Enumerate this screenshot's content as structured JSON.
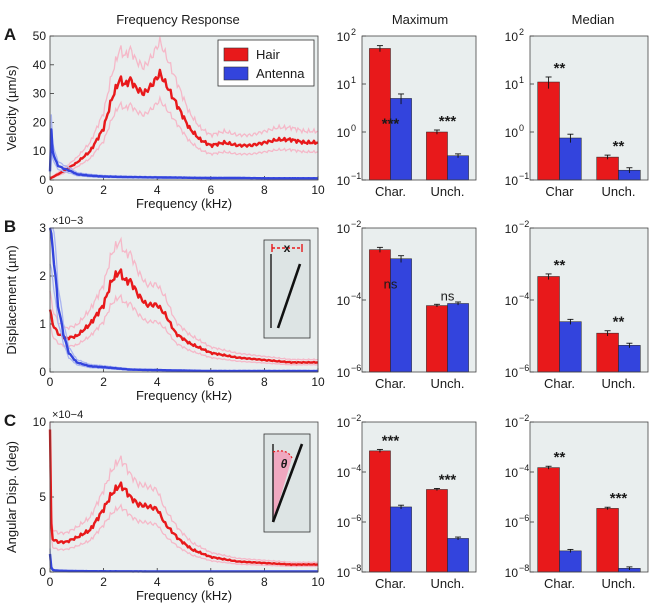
{
  "colors": {
    "hair": "#e8191b",
    "antenna": "#3344dd",
    "hair_band": "#f5b8c8",
    "antenna_band": "#a9b4f0",
    "panel_bg": "#e9eeee",
    "inset_bg": "#dde4e4",
    "inset_pink": "#f0a8c0"
  },
  "headers": {
    "freq": "Frequency Response",
    "max": "Maximum",
    "median": "Median"
  },
  "legend": {
    "hair": "Hair",
    "antenna": "Antenna"
  },
  "rows": [
    {
      "letter": "A",
      "ylabel": "Velocity (µm/s)",
      "xlabel": "Frequency (kHz)",
      "exponent": "",
      "yticks": [
        "0",
        "10",
        "20",
        "30",
        "40",
        "50"
      ],
      "xticks": [
        "0",
        "2",
        "4",
        "6",
        "8",
        "10"
      ],
      "inset": "",
      "bar_yticks": [
        {
          "base": "10",
          "exp": "2"
        },
        {
          "base": "10",
          "exp": "1"
        },
        {
          "base": "10",
          "exp": "0"
        },
        {
          "base": "10",
          "exp": "-1"
        }
      ],
      "max_categories": [
        "Char.",
        "Unch."
      ],
      "median_categories": [
        "Char",
        "Unch."
      ],
      "max_stars": [
        "***",
        "***"
      ],
      "median_stars": [
        "**",
        "**"
      ]
    },
    {
      "letter": "B",
      "ylabel": "Displacement (µm)",
      "xlabel": "Frequency (kHz)",
      "exponent": "×10-3",
      "yticks": [
        "0",
        "1",
        "2",
        "3"
      ],
      "xticks": [
        "0",
        "2",
        "4",
        "6",
        "8",
        "10"
      ],
      "inset": "x",
      "bar_yticks": [
        {
          "base": "10",
          "exp": "-2"
        },
        {
          "base": "10",
          "exp": "-4"
        },
        {
          "base": "10",
          "exp": "-6"
        }
      ],
      "max_categories": [
        "Char.",
        "Unch."
      ],
      "median_categories": [
        "Char.",
        "Unch."
      ],
      "max_stars": [
        "ns",
        "ns"
      ],
      "median_stars": [
        "**",
        "**"
      ]
    },
    {
      "letter": "C",
      "ylabel": "Angular Disp. (deg)",
      "xlabel": "Frequency (kHz)",
      "exponent": "×10-4",
      "yticks": [
        "0",
        "5",
        "10"
      ],
      "xticks": [
        "0",
        "2",
        "4",
        "6",
        "8",
        "10"
      ],
      "inset": "θ",
      "bar_yticks": [
        {
          "base": "10",
          "exp": "-2"
        },
        {
          "base": "10",
          "exp": "-4"
        },
        {
          "base": "10",
          "exp": "-6"
        },
        {
          "base": "10",
          "exp": "-8"
        }
      ],
      "max_categories": [
        "Char.",
        "Unch."
      ],
      "median_categories": [
        "Char.",
        "Unch."
      ],
      "max_stars": [
        "***",
        "***"
      ],
      "median_stars": [
        "**",
        "***"
      ]
    }
  ],
  "chart_data": [
    {
      "type": "line",
      "panel": "A",
      "title": "Frequency Response",
      "xlabel": "Frequency (kHz)",
      "ylabel": "Velocity (µm/s)",
      "xlim": [
        0,
        10
      ],
      "ylim": [
        0,
        50
      ],
      "legend": "top-right",
      "series": [
        {
          "name": "Hair",
          "x": [
            0,
            0.5,
            1,
            1.5,
            2,
            2.3,
            2.6,
            2.8,
            3.0,
            3.2,
            3.5,
            3.8,
            4.1,
            4.4,
            4.8,
            5.2,
            5.6,
            6.0,
            6.5,
            7,
            7.5,
            8,
            8.5,
            9,
            9.5,
            10
          ],
          "values": [
            0.5,
            3,
            6,
            10,
            18,
            28,
            35,
            33,
            35,
            32,
            30,
            33,
            37,
            32,
            25,
            18,
            14,
            12,
            13,
            12,
            12,
            13,
            14,
            14,
            13,
            13
          ]
        },
        {
          "name": "Antenna",
          "x": [
            0,
            0.05,
            0.1,
            0.2,
            0.3,
            0.5,
            0.8,
            1,
            1.5,
            2,
            3,
            4,
            5,
            6,
            7,
            8,
            9,
            10
          ],
          "values": [
            3,
            17,
            10,
            7,
            5,
            4,
            3,
            2,
            1.5,
            1.2,
            1,
            0.9,
            0.8,
            0.7,
            0.7,
            0.6,
            0.6,
            0.6
          ]
        }
      ]
    },
    {
      "type": "bar",
      "panel": "A",
      "title": "Maximum",
      "yscale": "log",
      "ylim": [
        0.1,
        100
      ],
      "categories": [
        "Char.",
        "Unch."
      ],
      "series": [
        {
          "name": "Hair",
          "values": [
            55,
            1.0
          ],
          "err": [
            8,
            0.1
          ]
        },
        {
          "name": "Antenna",
          "values": [
            5,
            0.32
          ],
          "err": [
            1.2,
            0.03
          ]
        }
      ]
    },
    {
      "type": "bar",
      "panel": "A",
      "title": "Median",
      "yscale": "log",
      "ylim": [
        0.1,
        100
      ],
      "categories": [
        "Char",
        "Unch."
      ],
      "series": [
        {
          "name": "Hair",
          "values": [
            11,
            0.3
          ],
          "err": [
            3,
            0.03
          ]
        },
        {
          "name": "Antenna",
          "values": [
            0.75,
            0.16
          ],
          "err": [
            0.15,
            0.02
          ]
        }
      ]
    },
    {
      "type": "line",
      "panel": "B",
      "xlabel": "Frequency (kHz)",
      "ylabel": "Displacement (µm)",
      "xlim": [
        0,
        10
      ],
      "ylim": [
        0,
        0.003
      ],
      "series": [
        {
          "name": "Hair",
          "x": [
            0,
            0.1,
            0.3,
            0.6,
            1,
            1.5,
            2,
            2.3,
            2.6,
            2.8,
            3.0,
            3.3,
            3.6,
            4.0,
            4.3,
            4.7,
            5.2,
            6,
            7,
            8,
            9,
            10
          ],
          "values": [
            0.0013,
            0.001,
            0.0008,
            0.0007,
            0.00075,
            0.001,
            0.0014,
            0.0019,
            0.0021,
            0.0019,
            0.0019,
            0.0016,
            0.0014,
            0.0014,
            0.0012,
            0.0008,
            0.0006,
            0.0004,
            0.0003,
            0.00025,
            0.0002,
            0.0002
          ]
        },
        {
          "name": "Antenna",
          "x": [
            0,
            0.05,
            0.1,
            0.2,
            0.3,
            0.5,
            0.7,
            1,
            1.5,
            2,
            3,
            4,
            5,
            6,
            8,
            10
          ],
          "values": [
            0.003,
            0.0028,
            0.0026,
            0.002,
            0.0014,
            0.0008,
            0.0004,
            0.0002,
            0.00012,
            0.0001,
            5e-05,
            4e-05,
            3e-05,
            2e-05,
            2e-05,
            2e-05
          ]
        }
      ]
    },
    {
      "type": "bar",
      "panel": "B",
      "title": "Maximum",
      "yscale": "log",
      "ylim": [
        1e-06,
        0.01
      ],
      "categories": [
        "Char.",
        "Unch."
      ],
      "series": [
        {
          "name": "Hair",
          "values": [
            0.0025,
            7e-05
          ],
          "err": [
            0.0004,
            6e-06
          ]
        },
        {
          "name": "Antenna",
          "values": [
            0.0014,
            8e-05
          ],
          "err": [
            0.0003,
            8e-06
          ]
        }
      ]
    },
    {
      "type": "bar",
      "panel": "B",
      "title": "Median",
      "yscale": "log",
      "ylim": [
        1e-06,
        0.01
      ],
      "categories": [
        "Char.",
        "Unch."
      ],
      "series": [
        {
          "name": "Hair",
          "values": [
            0.00045,
            1.2e-05
          ],
          "err": [
            8e-05,
            2e-06
          ]
        },
        {
          "name": "Antenna",
          "values": [
            2.5e-05,
            5.5e-06
          ],
          "err": [
            4e-06,
            8e-07
          ]
        }
      ]
    },
    {
      "type": "line",
      "panel": "C",
      "xlabel": "Frequency (kHz)",
      "ylabel": "Angular Disp. (deg)",
      "xlim": [
        0,
        10
      ],
      "ylim": [
        0,
        0.001
      ],
      "series": [
        {
          "name": "Hair",
          "x": [
            0,
            0.03,
            0.1,
            0.3,
            0.6,
            1,
            1.5,
            2,
            2.3,
            2.6,
            2.8,
            3.0,
            3.3,
            3.6,
            4.0,
            4.3,
            4.8,
            5.3,
            6,
            7,
            8,
            9,
            10
          ],
          "values": [
            0.00095,
            0.00035,
            0.00022,
            0.0002,
            0.0002,
            0.00023,
            0.00028,
            0.00042,
            0.00052,
            0.00058,
            0.00055,
            0.0005,
            0.00045,
            0.00044,
            0.00042,
            0.00032,
            0.00022,
            0.00015,
            0.0001,
            7e-05,
            6e-05,
            5e-05,
            5e-05
          ]
        },
        {
          "name": "Antenna",
          "x": [
            0,
            0.05,
            0.1,
            0.2,
            0.5,
            1,
            2,
            4,
            6,
            8,
            10
          ],
          "values": [
            0.00012,
            3e-05,
            1.5e-05,
            1e-05,
            8e-06,
            6e-06,
            5e-06,
            4e-06,
            4e-06,
            4e-06,
            4e-06
          ]
        }
      ]
    },
    {
      "type": "bar",
      "panel": "C",
      "title": "Maximum",
      "yscale": "log",
      "ylim": [
        1e-08,
        0.01
      ],
      "categories": [
        "Char.",
        "Unch."
      ],
      "series": [
        {
          "name": "Hair",
          "values": [
            0.0007,
            2e-05
          ],
          "err": [
            0.0001,
            2e-06
          ]
        },
        {
          "name": "Antenna",
          "values": [
            4e-06,
            2.2e-07
          ],
          "err": [
            7e-07,
            3e-08
          ]
        }
      ]
    },
    {
      "type": "bar",
      "panel": "C",
      "title": "Median",
      "yscale": "log",
      "ylim": [
        1e-08,
        0.01
      ],
      "categories": [
        "Char.",
        "Unch."
      ],
      "series": [
        {
          "name": "Hair",
          "values": [
            0.00015,
            3.5e-06
          ],
          "err": [
            2e-05,
            4e-07
          ]
        },
        {
          "name": "Antenna",
          "values": [
            7e-08,
            1.4e-08
          ],
          "err": [
            1e-08,
            2e-09
          ]
        }
      ]
    }
  ]
}
